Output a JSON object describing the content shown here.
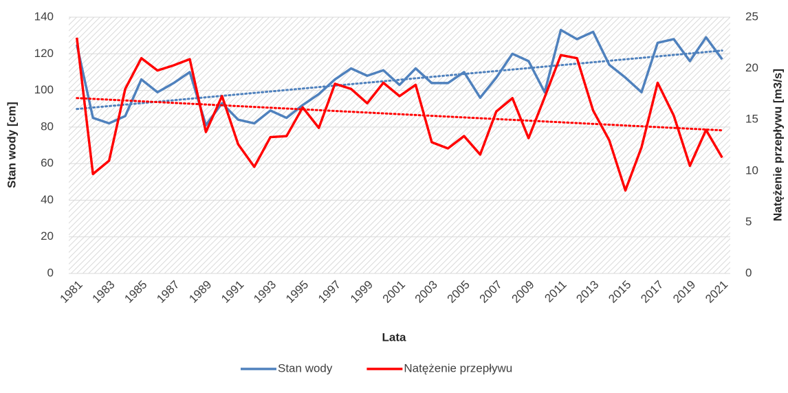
{
  "chart_data": {
    "type": "line",
    "xlabel": "Lata",
    "ylabel": "Stan wody [cm]",
    "y2label": "Natężenie przepływu [m3/s]",
    "categories": [
      "1981",
      null,
      "1983",
      null,
      "1985",
      null,
      "1987",
      null,
      "1989",
      null,
      "1991",
      null,
      "1993",
      null,
      "1995",
      null,
      "1997",
      null,
      "1999",
      null,
      "2001",
      null,
      "2003",
      null,
      "2005",
      null,
      "2007",
      null,
      "2009",
      null,
      "2011",
      null,
      "2013",
      null,
      "2015",
      null,
      "2017",
      null,
      "2019",
      null,
      "2021"
    ],
    "series": [
      {
        "name": "Stan wody",
        "color": "#4f81bd",
        "trend_color": "#4f81bd",
        "values": [
          125,
          85,
          82,
          86,
          106,
          99,
          104,
          110,
          81,
          93,
          84,
          82,
          89,
          85,
          92,
          98,
          106,
          112,
          108,
          111,
          103,
          112,
          104,
          104,
          110,
          96,
          107,
          120,
          116,
          99,
          133,
          128,
          132,
          114,
          107,
          99,
          126,
          128,
          116,
          129,
          117
        ]
      },
      {
        "name": "Natężenie przepływu",
        "color": "#ff0000",
        "trend_color": "#ff0000",
        "axis": "y2",
        "values": [
          23,
          9.7,
          11,
          18,
          21,
          19.8,
          20.3,
          20.9,
          13.8,
          17.3,
          12.6,
          10.4,
          13.3,
          13.4,
          16.2,
          14.2,
          18.5,
          18,
          16.6,
          18.6,
          17.3,
          18.4,
          12.8,
          12.2,
          13.4,
          11.6,
          15.8,
          17.1,
          13.2,
          17.2,
          21.3,
          21,
          15.9,
          13,
          8.1,
          12.3,
          18.6,
          15.4,
          10.5,
          14,
          11.3
        ]
      }
    ],
    "ylim": [
      0,
      140
    ],
    "yticks": [
      0,
      20,
      40,
      60,
      80,
      100,
      120,
      140
    ],
    "y2lim": [
      0,
      25
    ],
    "y2ticks": [
      0,
      5,
      10,
      15,
      20,
      25
    ],
    "grid": true,
    "trendline": true,
    "legend": "bottom"
  }
}
